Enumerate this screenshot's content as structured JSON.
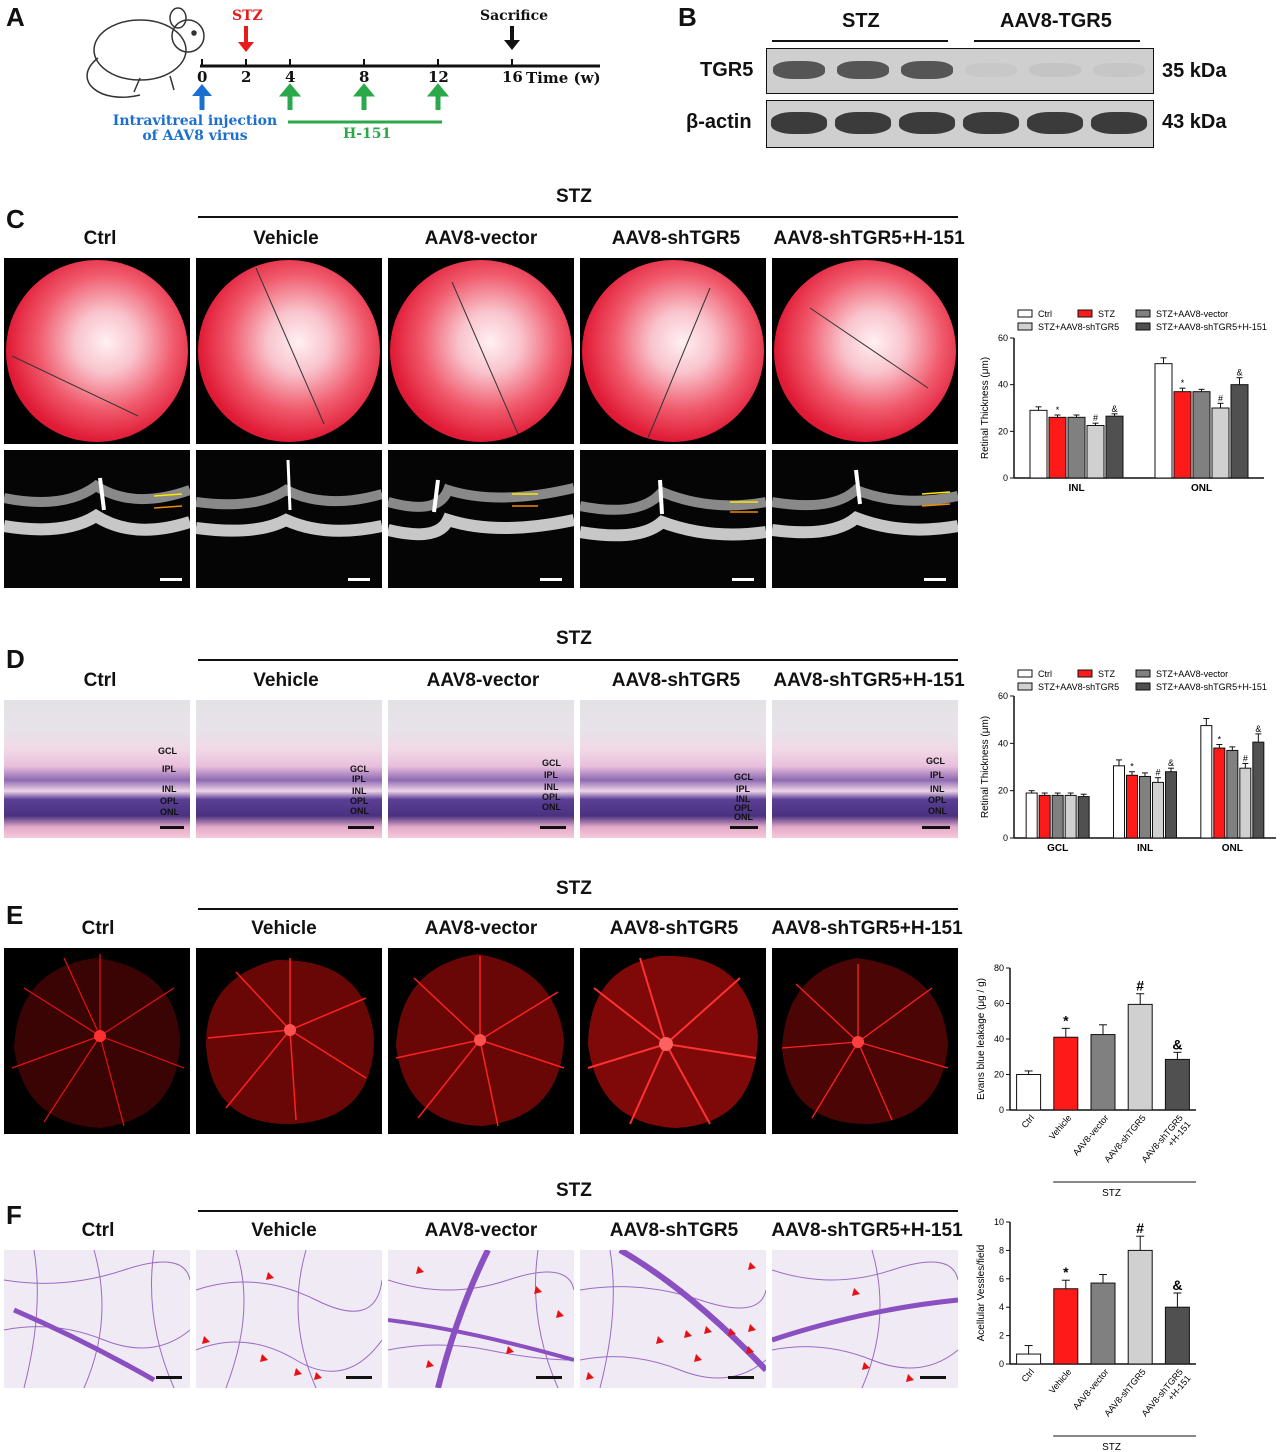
{
  "panels": {
    "A": "A",
    "B": "B",
    "C": "C",
    "D": "D",
    "E": "E",
    "F": "F"
  },
  "timeline": {
    "stz": "STZ",
    "sacrifice": "Sacrifice",
    "ticks": [
      "0",
      "2",
      "4",
      "8",
      "12",
      "16"
    ],
    "time_label": "Time (w)",
    "injection": "Intravitreal injection",
    "injection2": "of AAV8 virus",
    "h151": "H-151"
  },
  "western": {
    "group1": "STZ",
    "group2": "AAV8-TGR5",
    "rows": [
      {
        "protein": "TGR5",
        "size": "35 kDa"
      },
      {
        "protein": "β-actin",
        "size": "43 kDa"
      }
    ]
  },
  "common": {
    "stz": "STZ",
    "columns": [
      "Ctrl",
      "Vehicle",
      "AAV8-vector",
      "AAV8-shTGR5",
      "AAV8-shTGR5+H-151"
    ],
    "oct_layers": [
      "INL",
      "ONL"
    ],
    "he_layers": [
      "GCL",
      "IPL",
      "INL",
      "OPL",
      "ONL"
    ]
  },
  "colors": {
    "ctrl": "#ffffff",
    "stz": "#ff1a1a",
    "vector": "#808080",
    "sh": "#d0d0d0",
    "sh_h151": "#505050"
  },
  "chart_data": [
    {
      "id": "C",
      "type": "bar",
      "ylabel": "Retinal Thickness (μm)",
      "ylim": [
        0,
        60
      ],
      "yticks": [
        "0",
        "20",
        "40",
        "60"
      ],
      "categories": [
        "INL",
        "ONL"
      ],
      "legend": [
        "Ctrl",
        "STZ",
        "STZ+AAV8-vector",
        "STZ+AAV8-shTGR5",
        "STZ+AAV8-shTGR5+H-151"
      ],
      "series": [
        {
          "name": "Ctrl",
          "values": [
            29,
            49
          ],
          "errors": [
            1.5,
            2.5
          ],
          "marks": [
            "",
            ""
          ]
        },
        {
          "name": "STZ",
          "values": [
            26,
            37
          ],
          "errors": [
            1,
            1.5
          ],
          "marks": [
            "*",
            "*"
          ]
        },
        {
          "name": "STZ+AAV8-vector",
          "values": [
            26,
            37
          ],
          "errors": [
            1,
            1
          ],
          "marks": [
            "",
            ""
          ]
        },
        {
          "name": "STZ+AAV8-shTGR5",
          "values": [
            22.5,
            30
          ],
          "errors": [
            1,
            2
          ],
          "marks": [
            "#",
            "#"
          ]
        },
        {
          "name": "STZ+AAV8-shTGR5+H-151",
          "values": [
            26.5,
            40
          ],
          "errors": [
            1,
            3
          ],
          "marks": [
            "&",
            "&"
          ]
        }
      ]
    },
    {
      "id": "D",
      "type": "bar",
      "ylabel": "Retinal Thickness (μm)",
      "ylim": [
        0,
        60
      ],
      "yticks": [
        "0",
        "20",
        "40",
        "60"
      ],
      "categories": [
        "GCL",
        "INL",
        "ONL"
      ],
      "legend": [
        "Ctrl",
        "STZ",
        "STZ+AAV8-vector",
        "STZ+AAV8-shTGR5",
        "STZ+AAV8-shTGR5+H-151"
      ],
      "series": [
        {
          "name": "Ctrl",
          "values": [
            19,
            30.5,
            47.5
          ],
          "errors": [
            1,
            2.5,
            3
          ],
          "marks": [
            "",
            "",
            ""
          ]
        },
        {
          "name": "STZ",
          "values": [
            18,
            26.5,
            38
          ],
          "errors": [
            1,
            1.5,
            1.5
          ],
          "marks": [
            "",
            "*",
            "*"
          ]
        },
        {
          "name": "STZ+AAV8-vector",
          "values": [
            18,
            26,
            37
          ],
          "errors": [
            1,
            1.5,
            1.5
          ],
          "marks": [
            "",
            "",
            ""
          ]
        },
        {
          "name": "STZ+AAV8-shTGR5",
          "values": [
            18,
            23.5,
            29.5
          ],
          "errors": [
            1,
            2,
            2
          ],
          "marks": [
            "",
            "#",
            "#"
          ]
        },
        {
          "name": "STZ+AAV8-shTGR5+H-151",
          "values": [
            17.5,
            28,
            40.5
          ],
          "errors": [
            1,
            1.5,
            3.5
          ],
          "marks": [
            "",
            "&",
            "&"
          ]
        }
      ]
    },
    {
      "id": "E",
      "type": "bar",
      "ylabel": "Evans blue leakage (μg / g)",
      "ylim": [
        0,
        80
      ],
      "yticks": [
        "0",
        "20",
        "40",
        "60",
        "80"
      ],
      "categories": [
        "Ctrl",
        "Vehicle",
        "AAV8-vector",
        "AAV8-shTGR5",
        "AAV8-shTGR5 +H-151"
      ],
      "values": [
        20,
        41,
        42.5,
        59.5,
        28.5
      ],
      "errors": [
        2,
        5,
        5.5,
        6,
        4
      ],
      "marks": [
        "",
        "*",
        "",
        "#",
        "&"
      ],
      "group_label": "STZ"
    },
    {
      "id": "F",
      "type": "bar",
      "ylabel": "Acellular Vessles/field",
      "ylim": [
        0,
        10
      ],
      "yticks": [
        "0",
        "2",
        "4",
        "6",
        "8",
        "10"
      ],
      "categories": [
        "Ctrl",
        "Vehicle",
        "AAV8-vector",
        "AAV8-shTGR5",
        "AAV8-shTGR5 +H-151"
      ],
      "values": [
        0.7,
        5.3,
        5.7,
        8,
        4
      ],
      "errors": [
        0.6,
        0.6,
        0.6,
        1,
        1
      ],
      "marks": [
        "",
        "*",
        "",
        "#",
        "&"
      ],
      "group_label": "STZ"
    }
  ]
}
